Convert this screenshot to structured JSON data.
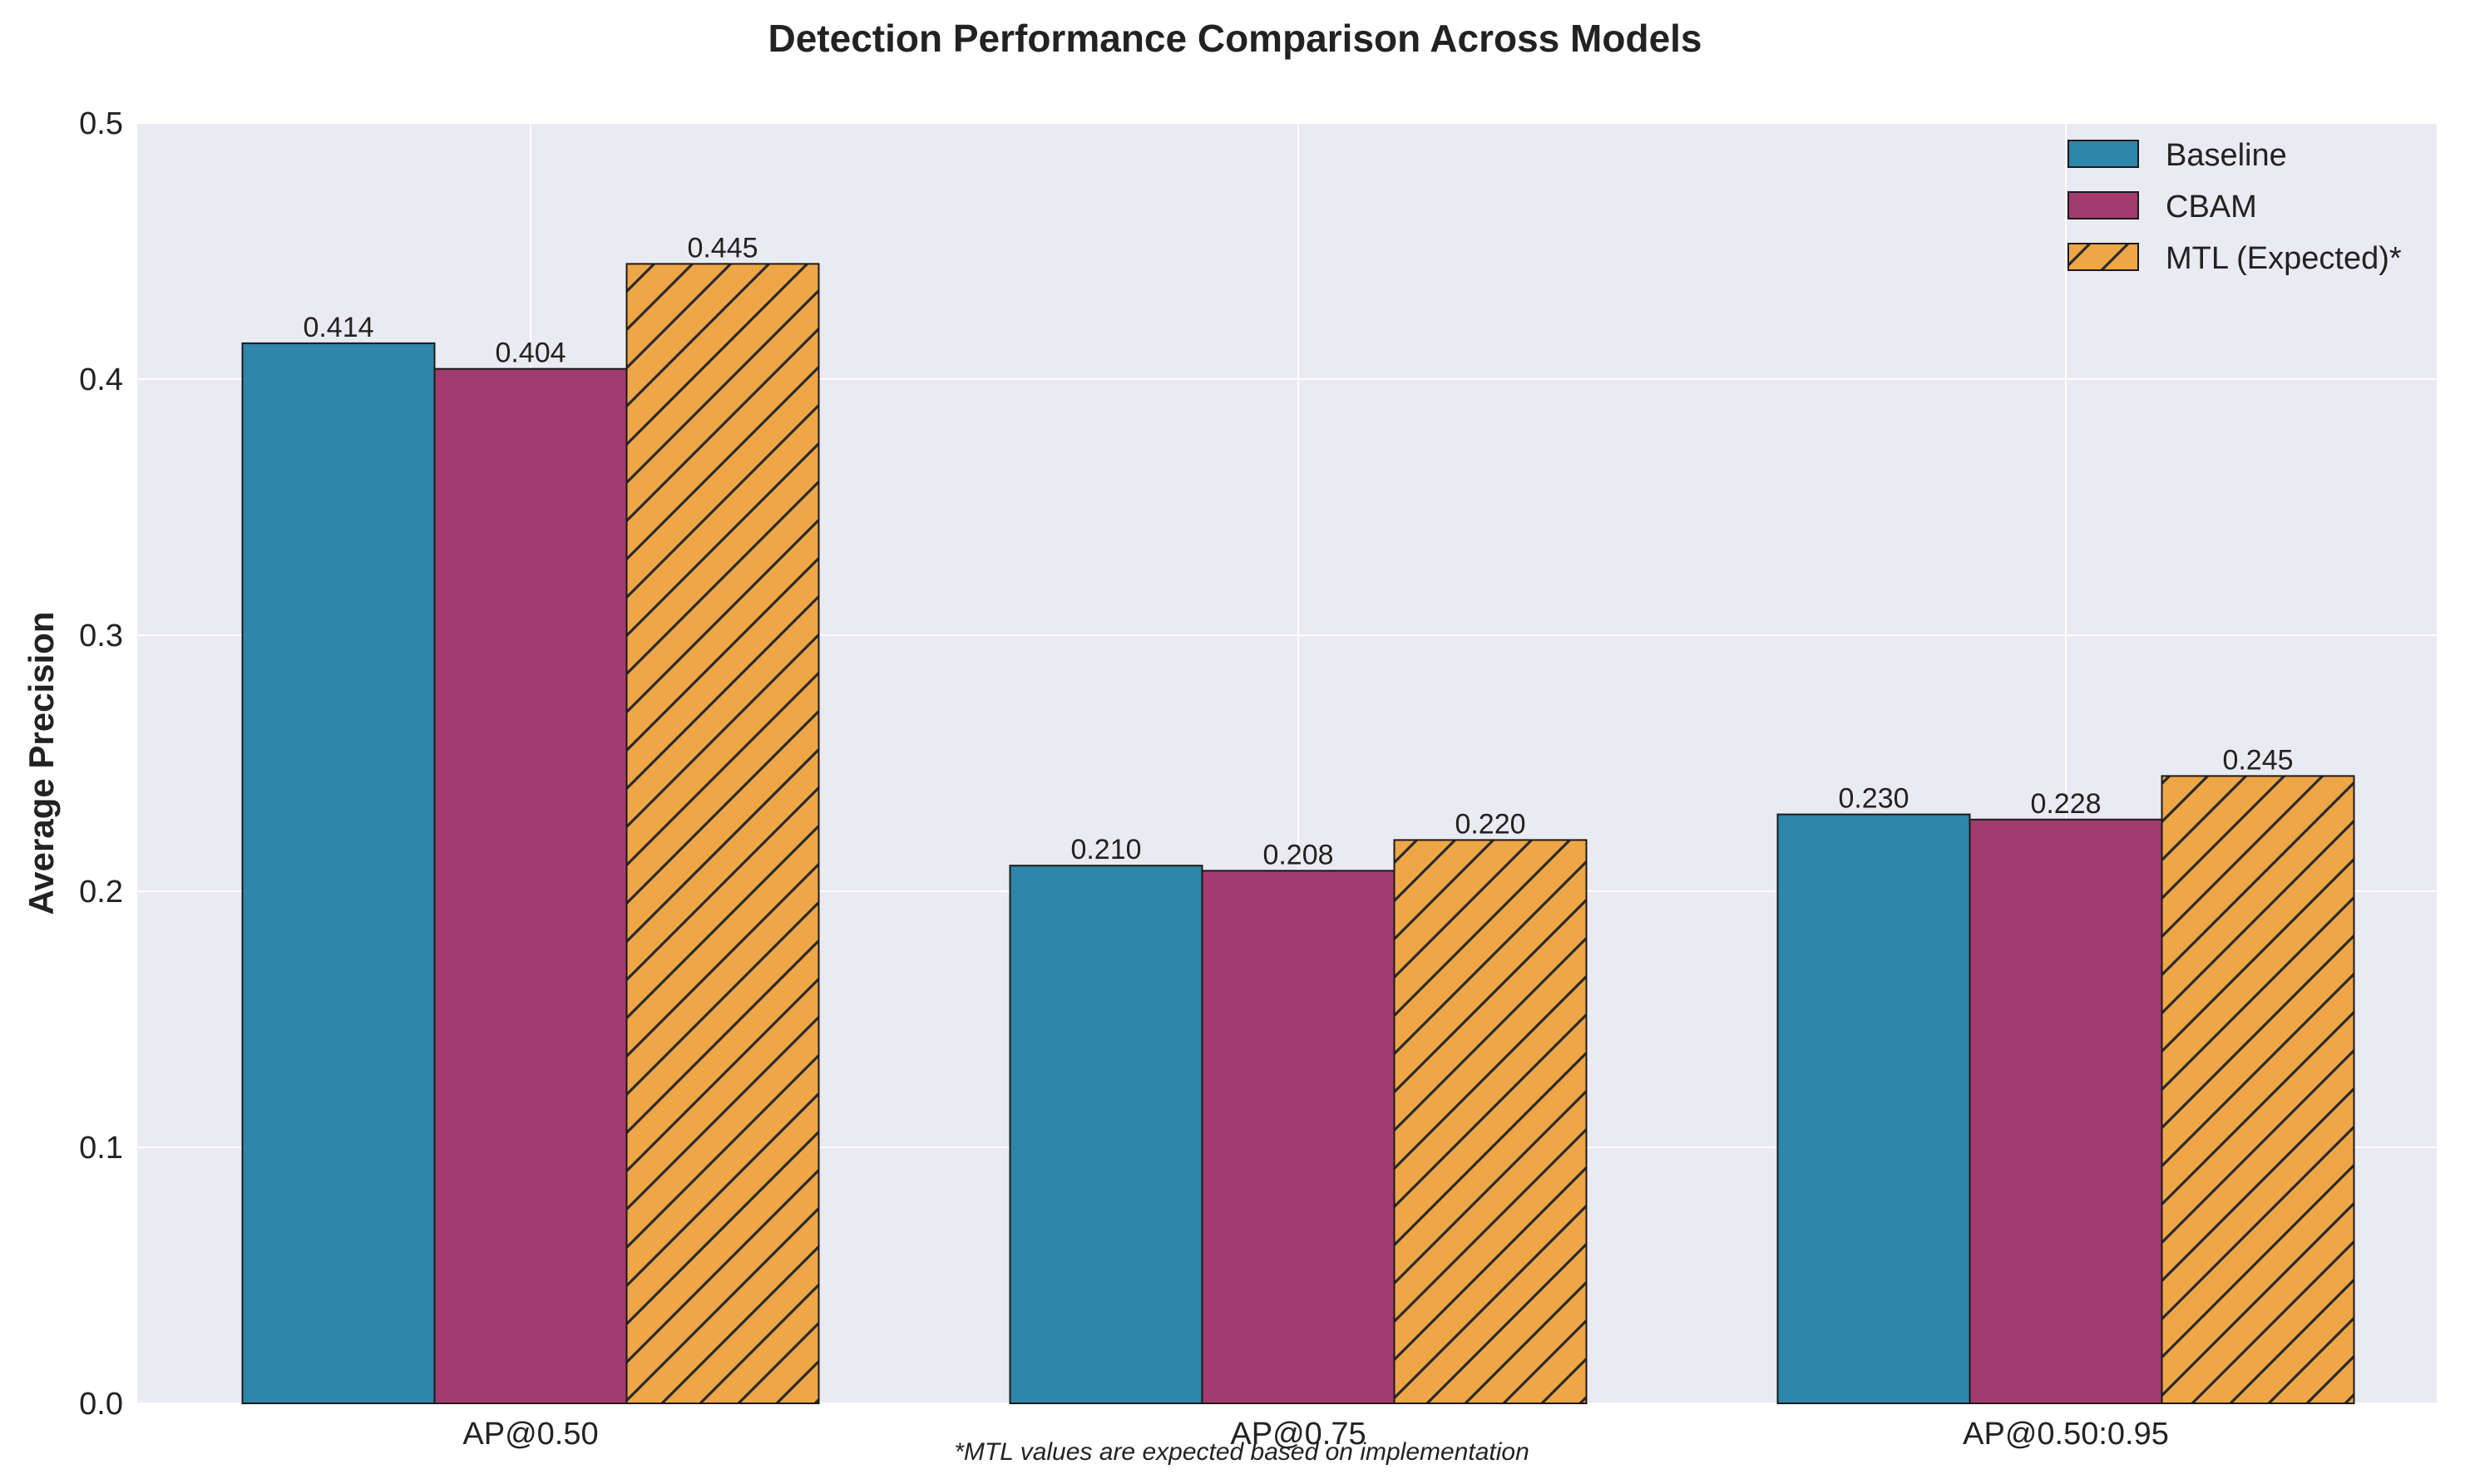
{
  "chart_data": {
    "type": "bar",
    "title": "Detection Performance Comparison Across Models",
    "xlabel": "",
    "ylabel": "Average Precision",
    "categories": [
      "AP@0.50",
      "AP@0.75",
      "AP@0.50:0.95"
    ],
    "series": [
      {
        "name": "Baseline",
        "values": [
          0.414,
          0.21,
          0.23
        ],
        "value_labels": [
          "0.414",
          "0.210",
          "0.230"
        ],
        "color": "#2e86ab",
        "hatch": false
      },
      {
        "name": "CBAM",
        "values": [
          0.404,
          0.208,
          0.228
        ],
        "value_labels": [
          "0.404",
          "0.208",
          "0.228"
        ],
        "color": "#a23b6d",
        "hatch": false
      },
      {
        "name": "MTL (Expected)*",
        "values": [
          0.445,
          0.22,
          0.245
        ],
        "value_labels": [
          "0.445",
          "0.220",
          "0.245"
        ],
        "color": "#eea647",
        "hatch": true
      }
    ],
    "ylim": [
      0,
      0.5
    ],
    "yticks": [
      "0.0",
      "0.1",
      "0.2",
      "0.3",
      "0.4",
      "0.5"
    ],
    "grid": true,
    "legend_position": "top-right",
    "background_color": "#eaeaf2",
    "footnote": "*MTL values are expected based on implementation"
  }
}
